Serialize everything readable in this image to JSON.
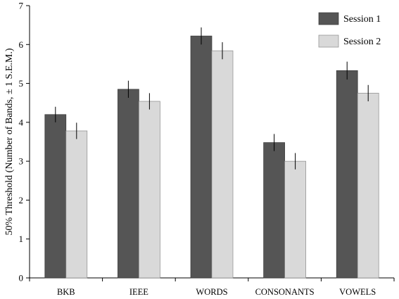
{
  "chart_data": {
    "type": "bar",
    "title": "",
    "xlabel": "",
    "ylabel": "50% Threshold (Number of Bands, ± 1 S.E.M.)",
    "ylim": [
      0,
      7
    ],
    "yticks": [
      0,
      1,
      2,
      3,
      4,
      5,
      6,
      7
    ],
    "grid": false,
    "legend_position": "top-right",
    "categories": [
      "BKB",
      "IEEE",
      "WORDS",
      "CONSONANTS",
      "VOWELS"
    ],
    "series": [
      {
        "name": "Session 1",
        "color": "#555555",
        "values": [
          4.2,
          4.85,
          6.22,
          3.48,
          5.33
        ],
        "errors": [
          0.2,
          0.22,
          0.22,
          0.22,
          0.23
        ]
      },
      {
        "name": "Session 2",
        "color": "#d9d9d9",
        "values": [
          3.78,
          4.54,
          5.84,
          3.0,
          4.75
        ],
        "errors": [
          0.21,
          0.21,
          0.22,
          0.21,
          0.21
        ]
      }
    ]
  }
}
